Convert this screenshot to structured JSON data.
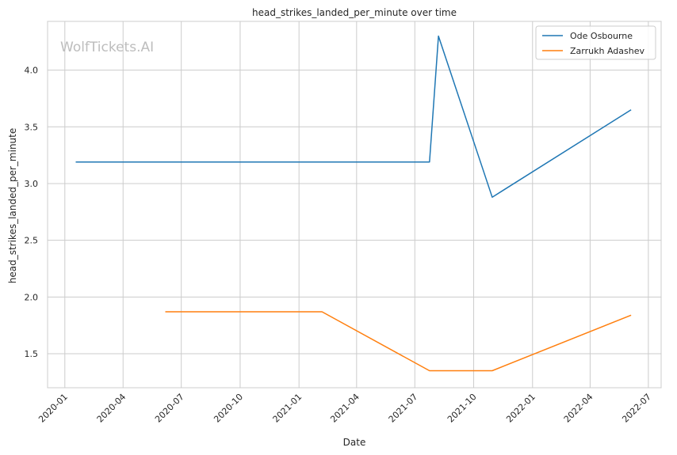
{
  "chart_data": {
    "type": "line",
    "title": "head_strikes_landed_per_minute over time",
    "xlabel": "Date",
    "ylabel": "head_strikes_landed_per_minute",
    "watermark": "WolfTickets.AI",
    "x_ticks": [
      "2020-01",
      "2020-04",
      "2020-07",
      "2020-10",
      "2021-01",
      "2021-04",
      "2021-07",
      "2021-10",
      "2022-01",
      "2022-04",
      "2022-07"
    ],
    "y_ticks": [
      "1.5",
      "2.0",
      "2.5",
      "3.0",
      "3.5",
      "4.0"
    ],
    "xlim": [
      "2019-12-05",
      "2022-07-21"
    ],
    "ylim": [
      1.2,
      4.43
    ],
    "grid": true,
    "legend_position": "top-right",
    "series": [
      {
        "name": "Ode Osbourne",
        "color": "#1f77b4",
        "points": [
          {
            "x": "2020-01-18",
            "y": 3.19
          },
          {
            "x": "2021-07-24",
            "y": 3.19
          },
          {
            "x": "2021-08-07",
            "y": 4.3
          },
          {
            "x": "2021-10-30",
            "y": 2.88
          },
          {
            "x": "2022-06-04",
            "y": 3.65
          }
        ]
      },
      {
        "name": "Zarrukh Adashev",
        "color": "#ff7f0e",
        "points": [
          {
            "x": "2020-06-06",
            "y": 1.87
          },
          {
            "x": "2021-02-06",
            "y": 1.87
          },
          {
            "x": "2021-07-24",
            "y": 1.35
          },
          {
            "x": "2021-10-30",
            "y": 1.35
          },
          {
            "x": "2022-06-04",
            "y": 1.84
          }
        ]
      }
    ]
  }
}
